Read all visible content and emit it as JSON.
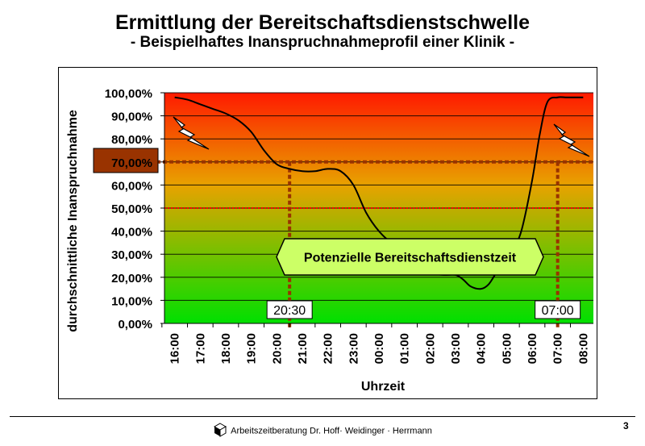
{
  "title": "Ermittlung der Bereitschaftsdienstschwelle",
  "subtitle": "- Beispielhaftes Inanspruchnahmeprofil einer Klinik -",
  "footer": {
    "text": "Arbeitszeitberatung Dr. Hoff· Weidinger · Herrmann",
    "logo_icon": "cube-logo-icon",
    "page_number": "3"
  },
  "colors": {
    "gradient_top": "#ff1a00",
    "gradient_mid": "#e8a200",
    "gradient_bottom": "#00e000",
    "threshold_line": "#993300",
    "threshold_marker": "#993300",
    "ref_line_50": "#ff0000",
    "label_box": "#ccff66"
  },
  "chart_data": {
    "type": "line",
    "title": "",
    "xlabel": "Uhrzeit",
    "ylabel": "durchschnittliche Inanspruchnahme",
    "ylim": [
      0,
      100
    ],
    "yticks": [
      "0,00%",
      "10,00%",
      "20,00%",
      "30,00%",
      "40,00%",
      "50,00%",
      "60,00%",
      "70,00%",
      "80,00%",
      "90,00%",
      "100,00%"
    ],
    "categories": [
      "16:00",
      "17:00",
      "18:00",
      "19:00",
      "20:00",
      "21:00",
      "22:00",
      "23:00",
      "00:00",
      "01:00",
      "02:00",
      "03:00",
      "04:00",
      "05:00",
      "06:00",
      "07:00",
      "08:00"
    ],
    "series": [
      {
        "x": [
          16.0,
          16.5,
          17.0,
          17.5,
          18.0,
          18.5,
          19.0,
          19.5,
          20.0,
          20.5,
          21.0,
          21.5,
          22.0,
          22.5,
          23.0,
          23.5,
          24.0,
          24.5,
          25.0,
          25.3,
          25.6,
          26.0,
          26.5,
          27.0,
          27.3,
          27.6,
          28.0,
          28.3,
          28.6,
          29.0,
          29.3,
          29.6,
          30.0,
          30.3,
          30.6,
          31.0,
          31.3,
          31.6,
          32.0
        ],
        "values": [
          98,
          97,
          95,
          93,
          91,
          88,
          83,
          75,
          69,
          67,
          66,
          66,
          67,
          66,
          60,
          48,
          40,
          35,
          33,
          30,
          25,
          22,
          21,
          21,
          19,
          16,
          15,
          17,
          22,
          28,
          33,
          41,
          62,
          82,
          96,
          98,
          98,
          98,
          98
        ]
      }
    ],
    "threshold": {
      "value": 70,
      "label": ""
    },
    "reference_line": {
      "value": 50
    },
    "markers": [
      {
        "x": 20.5,
        "label": "20:30"
      },
      {
        "x": 31.0,
        "label": "07:00"
      }
    ],
    "zone_label": "Potenzielle Bereitschaftsdienstzeit",
    "grid": true,
    "legend": "none",
    "annotations": [
      "lightning-left",
      "lightning-right",
      "threshold-marker-box"
    ]
  }
}
